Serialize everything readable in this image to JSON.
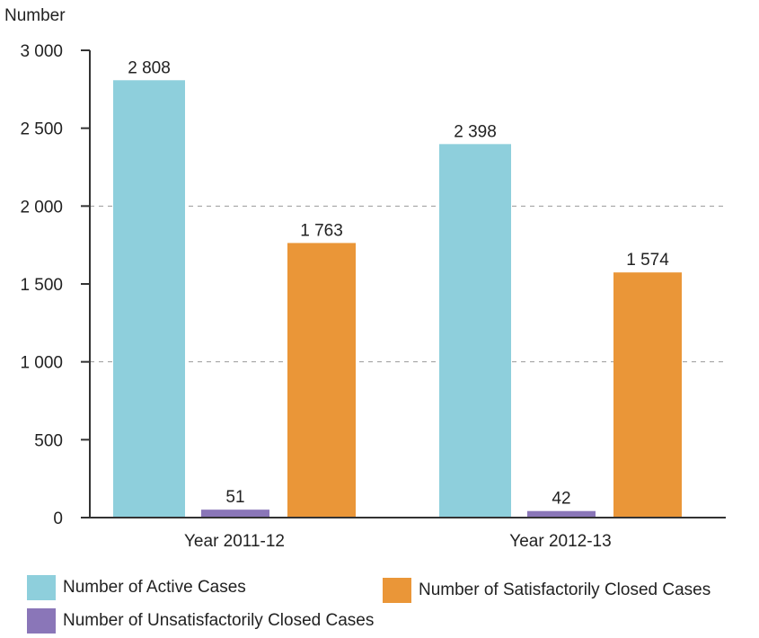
{
  "chart_data": {
    "type": "bar",
    "title": "",
    "ylabel": "Number",
    "xlabel": "",
    "ylim": [
      0,
      3000
    ],
    "yticks": [
      0,
      500,
      1000,
      1500,
      2000,
      2500,
      3000
    ],
    "ytick_labels": [
      "0",
      "500",
      "1 000",
      "1 500",
      "2 000",
      "2 500",
      "3 000"
    ],
    "categories": [
      "Year 2011-12",
      "Year 2012-13"
    ],
    "grid": "dashed lines at 1 000 and 2 000",
    "series": [
      {
        "name": "Number of Active Cases",
        "color": "#8ecfdc",
        "values": [
          2808,
          2398
        ],
        "labels": [
          "2 808",
          "2 398"
        ]
      },
      {
        "name": "Number of Unsatisfactorily Closed Cases",
        "color": "#8a76b8",
        "values": [
          51,
          42
        ],
        "labels": [
          "51",
          "42"
        ]
      },
      {
        "name": "Number of Satisfactorily Closed Cases",
        "color": "#ea9638",
        "values": [
          1763,
          1574
        ],
        "labels": [
          "1 763",
          "1 574"
        ]
      }
    ],
    "legend_position": "bottom"
  }
}
